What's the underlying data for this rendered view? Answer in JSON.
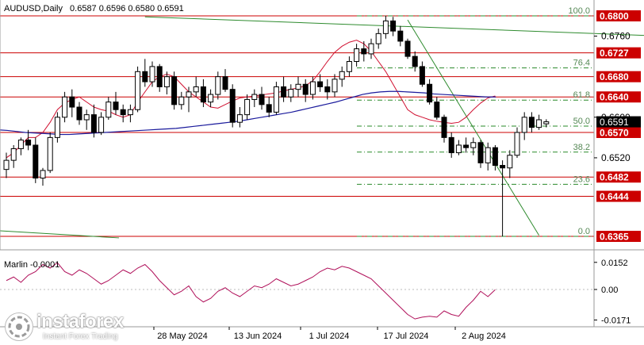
{
  "header": {
    "symbol": "AUDUSD,Daily",
    "ohlc": "0.6587 0.6596 0.6580 0.6591",
    "indicator_label": "Marlin -0.0001"
  },
  "price_axis": {
    "ticks": [
      "0.6760",
      "0.6600",
      "0.6520"
    ],
    "marked_levels": [
      "0.6800",
      "0.6727",
      "0.6680",
      "0.6640",
      "0.6570",
      "0.6482",
      "0.6444",
      "0.6365"
    ],
    "current_price": "0.6591"
  },
  "fib_labels": [
    "100.0",
    "76.4",
    "61.8",
    "50.0",
    "38.2",
    "23.6",
    "0.0"
  ],
  "indicator_axis": [
    "0.0152",
    "0.00",
    "-0.0171"
  ],
  "date_axis": [
    "28 May 2024",
    "13 Jun 2024",
    "1 Jul 2024",
    "17 Jul 2024",
    "2 Aug 2024"
  ],
  "watermark": {
    "brand": "instaforex",
    "tagline": "Instant Forex Trading"
  },
  "colors": {
    "background": "#ffffff",
    "support_resistance": "#cc0000",
    "fibonacci": "#2a8a2a",
    "ma_fast": "#d01030",
    "ma_slow": "#1a1a9c",
    "trendline": "#2e8b2e",
    "candles": "#000000",
    "indicator": "#b0105a"
  },
  "chart_data": [
    {
      "type": "candlestick",
      "title": "AUDUSD,Daily",
      "ylim": [
        0.634,
        0.6825
      ],
      "levels": [
        0.68,
        0.6727,
        0.668,
        0.664,
        0.657,
        0.6482,
        0.6444,
        0.6365
      ],
      "fibonacci": {
        "high": 0.68,
        "low": 0.6365,
        "ratios": [
          100.0,
          76.4,
          61.8,
          50.0,
          38.2,
          23.6,
          0.0
        ]
      },
      "candles": [
        [
          0.6497,
          0.653,
          0.648,
          0.6515
        ],
        [
          0.6515,
          0.6545,
          0.65,
          0.6538
        ],
        [
          0.6538,
          0.656,
          0.6525,
          0.6555
        ],
        [
          0.6555,
          0.6575,
          0.6535,
          0.6545
        ],
        [
          0.6545,
          0.656,
          0.647,
          0.648
        ],
        [
          0.648,
          0.65,
          0.6465,
          0.6495
        ],
        [
          0.6495,
          0.657,
          0.649,
          0.656
        ],
        [
          0.656,
          0.661,
          0.655,
          0.66
        ],
        [
          0.66,
          0.665,
          0.659,
          0.664
        ],
        [
          0.664,
          0.6655,
          0.66,
          0.662
        ],
        [
          0.662,
          0.663,
          0.6585,
          0.6595
        ],
        [
          0.6595,
          0.6615,
          0.6575,
          0.6605
        ],
        [
          0.6605,
          0.6625,
          0.656,
          0.657
        ],
        [
          0.657,
          0.661,
          0.6565,
          0.66
        ],
        [
          0.66,
          0.664,
          0.6595,
          0.663
        ],
        [
          0.663,
          0.665,
          0.6605,
          0.6615
        ],
        [
          0.6615,
          0.6625,
          0.659,
          0.6605
        ],
        [
          0.6605,
          0.6625,
          0.659,
          0.6615
        ],
        [
          0.6615,
          0.67,
          0.661,
          0.669
        ],
        [
          0.669,
          0.6715,
          0.666,
          0.667
        ],
        [
          0.667,
          0.671,
          0.666,
          0.67
        ],
        [
          0.67,
          0.6705,
          0.665,
          0.666
        ],
        [
          0.666,
          0.669,
          0.6645,
          0.668
        ],
        [
          0.668,
          0.669,
          0.6615,
          0.6625
        ],
        [
          0.6625,
          0.665,
          0.6615,
          0.664
        ],
        [
          0.664,
          0.666,
          0.661,
          0.665
        ],
        [
          0.665,
          0.668,
          0.664,
          0.666
        ],
        [
          0.666,
          0.6675,
          0.662,
          0.663
        ],
        [
          0.663,
          0.6655,
          0.662,
          0.6645
        ],
        [
          0.6645,
          0.669,
          0.6635,
          0.668
        ],
        [
          0.668,
          0.6695,
          0.665,
          0.6655
        ],
        [
          0.6655,
          0.6665,
          0.658,
          0.659
        ],
        [
          0.659,
          0.662,
          0.658,
          0.6605
        ],
        [
          0.6605,
          0.6645,
          0.6595,
          0.6635
        ],
        [
          0.6635,
          0.6655,
          0.662,
          0.6645
        ],
        [
          0.6645,
          0.666,
          0.6615,
          0.6625
        ],
        [
          0.6625,
          0.664,
          0.66,
          0.661
        ],
        [
          0.661,
          0.667,
          0.6605,
          0.666
        ],
        [
          0.666,
          0.668,
          0.663,
          0.664
        ],
        [
          0.664,
          0.6665,
          0.663,
          0.6655
        ],
        [
          0.6655,
          0.668,
          0.664,
          0.6665
        ],
        [
          0.6665,
          0.6675,
          0.663,
          0.6645
        ],
        [
          0.6645,
          0.668,
          0.6635,
          0.667
        ],
        [
          0.667,
          0.6685,
          0.665,
          0.666
        ],
        [
          0.666,
          0.6675,
          0.6635,
          0.665
        ],
        [
          0.665,
          0.6685,
          0.664,
          0.6675
        ],
        [
          0.6675,
          0.67,
          0.666,
          0.669
        ],
        [
          0.669,
          0.672,
          0.668,
          0.671
        ],
        [
          0.671,
          0.6745,
          0.67,
          0.6735
        ],
        [
          0.6735,
          0.675,
          0.671,
          0.6725
        ],
        [
          0.6725,
          0.6755,
          0.6715,
          0.6745
        ],
        [
          0.6745,
          0.6775,
          0.6735,
          0.6765
        ],
        [
          0.6765,
          0.68,
          0.6755,
          0.679
        ],
        [
          0.679,
          0.6798,
          0.676,
          0.677
        ],
        [
          0.677,
          0.678,
          0.674,
          0.675
        ],
        [
          0.675,
          0.6755,
          0.6715,
          0.672
        ],
        [
          0.672,
          0.673,
          0.669,
          0.67
        ],
        [
          0.67,
          0.671,
          0.666,
          0.6665
        ],
        [
          0.6665,
          0.6675,
          0.6625,
          0.663
        ],
        [
          0.663,
          0.664,
          0.6595,
          0.66
        ],
        [
          0.66,
          0.6605,
          0.655,
          0.656
        ],
        [
          0.656,
          0.657,
          0.652,
          0.653
        ],
        [
          0.653,
          0.6555,
          0.6525,
          0.6545
        ],
        [
          0.6545,
          0.656,
          0.653,
          0.654
        ],
        [
          0.654,
          0.656,
          0.6525,
          0.655
        ],
        [
          0.655,
          0.6555,
          0.65,
          0.651
        ],
        [
          0.651,
          0.655,
          0.6495,
          0.654
        ],
        [
          0.654,
          0.6545,
          0.6495,
          0.6505
        ],
        [
          0.6505,
          0.6515,
          0.6365,
          0.65
        ],
        [
          0.65,
          0.6535,
          0.648,
          0.6525
        ],
        [
          0.6525,
          0.658,
          0.652,
          0.657
        ],
        [
          0.657,
          0.661,
          0.6555,
          0.66
        ],
        [
          0.66,
          0.661,
          0.657,
          0.658
        ],
        [
          0.658,
          0.6605,
          0.6575,
          0.6595
        ],
        [
          0.6587,
          0.6596,
          0.658,
          0.6591
        ]
      ],
      "moving_average_fast": [
        0.652,
        0.653,
        0.6545,
        0.656,
        0.656,
        0.657,
        0.659,
        0.6615,
        0.6628,
        0.6635,
        0.664,
        0.663,
        0.662,
        0.6615,
        0.6612,
        0.6605,
        0.66,
        0.6605,
        0.663,
        0.665,
        0.667,
        0.668,
        0.6685,
        0.668,
        0.6665,
        0.665,
        0.664,
        0.663,
        0.662,
        0.6618,
        0.6625,
        0.6632,
        0.6638,
        0.664,
        0.6642,
        0.6644,
        0.6646,
        0.6648,
        0.6652,
        0.6655,
        0.6658,
        0.6662,
        0.6672,
        0.669,
        0.671,
        0.6728,
        0.674,
        0.6748,
        0.6752,
        0.6745,
        0.673,
        0.671,
        0.669,
        0.6665,
        0.664,
        0.6615,
        0.6605,
        0.66,
        0.6595,
        0.6592,
        0.659,
        0.6588,
        0.659,
        0.66,
        0.6615,
        0.6628,
        0.6638,
        0.6642
      ],
      "moving_average_slow": [
        0.6575,
        0.6574,
        0.6572,
        0.657,
        0.6569,
        0.6568,
        0.6567,
        0.6566,
        0.6566,
        0.6567,
        0.6568,
        0.6569,
        0.657,
        0.6571,
        0.6572,
        0.6573,
        0.6574,
        0.6575,
        0.6576,
        0.6577,
        0.6578,
        0.658,
        0.6582,
        0.6584,
        0.6586,
        0.6588,
        0.659,
        0.6592,
        0.6595,
        0.6598,
        0.6601,
        0.6604,
        0.6607,
        0.661,
        0.6614,
        0.6618,
        0.6622,
        0.6626,
        0.663,
        0.6635,
        0.664,
        0.6645,
        0.6648,
        0.665,
        0.6651,
        0.6651,
        0.665,
        0.6649,
        0.6648,
        0.6646,
        0.6645,
        0.6644,
        0.6643,
        0.6642,
        0.6641,
        0.664,
        0.664
      ],
      "trendlines": [
        [
          [
            19,
            0.6798
          ],
          [
            94,
            0.6758
          ]
        ],
        [
          [
            55,
            0.6792
          ],
          [
            73,
            0.6367
          ]
        ]
      ]
    },
    {
      "type": "line",
      "title": "Marlin -0.0001",
      "ylim": [
        -0.02,
        0.02
      ],
      "ticks": [
        0.0152,
        0.0,
        -0.0171
      ],
      "values": [
        0.005,
        0.007,
        0.004,
        0.008,
        0.01,
        0.014,
        0.012,
        0.015,
        0.01,
        0.008,
        0.011,
        0.009,
        0.006,
        0.003,
        0.005,
        0.008,
        0.011,
        0.009,
        0.012,
        0.014,
        0.01,
        0.005,
        0.001,
        -0.003,
        -0.001,
        0.002,
        -0.004,
        -0.007,
        -0.005,
        -0.001,
        0.001,
        -0.002,
        -0.004,
        -0.001,
        0.002,
        0.001,
        0.003,
        0.006,
        0.004,
        0.002,
        0.003,
        0.005,
        0.007,
        0.01,
        0.012,
        0.011,
        0.013,
        0.012,
        0.01,
        0.008,
        0.006,
        0.002,
        -0.002,
        -0.006,
        -0.01,
        -0.014,
        -0.0165,
        -0.0155,
        -0.015,
        -0.0155,
        -0.012,
        -0.014,
        -0.015,
        -0.01,
        -0.006,
        -0.001,
        -0.004,
        -0.0001
      ]
    }
  ]
}
